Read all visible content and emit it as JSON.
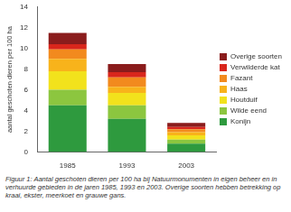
{
  "chart_data": {
    "type": "bar",
    "stacked": true,
    "y_label": "aantal geschoten dieren per 100 ha",
    "caption": "Figuur 1: Aantal geschoten dieren per 100 ha bij Natuurmonumenten in eigen beheer en in verhuurde gebieden in de jaren 1985, 1993 en 2003. Overige soorten hebben betrekking op kraai, ekster, meerkoet en grauwe gans.",
    "categories": [
      "1985",
      "1993",
      "2003"
    ],
    "series": [
      {
        "name": "Konijn",
        "color": "#2e9a3e",
        "values": [
          4.5,
          3.2,
          0.8
        ]
      },
      {
        "name": "Wilde eend",
        "color": "#8cc63f",
        "values": [
          1.5,
          1.3,
          0.4
        ]
      },
      {
        "name": "Houtduif",
        "color": "#f2e21c",
        "values": [
          1.8,
          1.2,
          0.4
        ]
      },
      {
        "name": "Haas",
        "color": "#f8b31b",
        "values": [
          1.2,
          0.6,
          0.3
        ]
      },
      {
        "name": "Fazant",
        "color": "#f28a1e",
        "values": [
          0.9,
          0.9,
          0.3
        ]
      },
      {
        "name": "Verwilderde kat",
        "color": "#d9261c",
        "values": [
          0.5,
          0.5,
          0.2
        ]
      },
      {
        "name": "Overige soorten",
        "color": "#8a1c1c",
        "values": [
          1.1,
          0.8,
          0.4
        ]
      }
    ],
    "ylim": [
      0,
      14
    ],
    "yticks": [
      0,
      2,
      4,
      6,
      8,
      10,
      12,
      14
    ],
    "grid": false,
    "legend": "right"
  }
}
